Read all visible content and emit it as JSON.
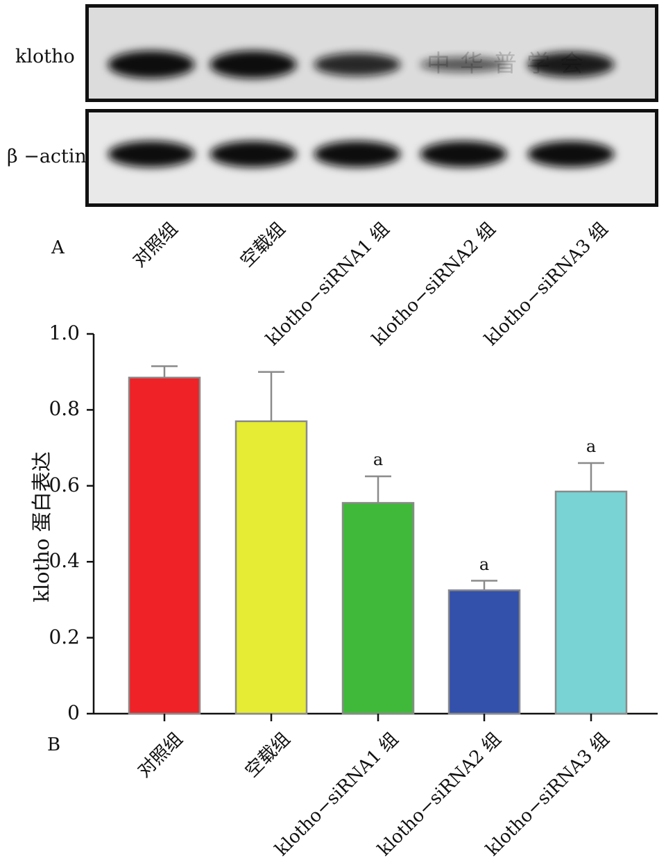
{
  "panel_a": {
    "letter": "A",
    "rows": [
      {
        "label": "klotho",
        "band_intensity": [
          1.0,
          1.0,
          0.8,
          0.45,
          0.9
        ]
      },
      {
        "label": "β −actin",
        "band_intensity": [
          1.0,
          1.0,
          1.0,
          1.0,
          1.0
        ]
      }
    ],
    "watermark": "中华普学会",
    "lane_labels": [
      "对照组",
      "空载组",
      "klotho−siRNA1 组",
      "klotho−siRNA2 组",
      "klotho−siRNA3 组"
    ]
  },
  "panel_b": {
    "letter": "B"
  },
  "chart_data": {
    "type": "bar",
    "categories": [
      "对照组",
      "空载组",
      "klotho−siRNA1 组",
      "klotho−siRNA2 组",
      "klotho−siRNA3 组"
    ],
    "values": [
      0.885,
      0.77,
      0.555,
      0.325,
      0.585
    ],
    "error_upper": [
      0.915,
      0.9,
      0.625,
      0.35,
      0.66
    ],
    "significance": [
      "",
      "",
      "a",
      "a",
      "a"
    ],
    "colors": [
      "#ee2227",
      "#e5ec33",
      "#40b93a",
      "#3350ab",
      "#79d2d3"
    ],
    "title": "",
    "xlabel": "",
    "ylabel": "klotho 蛋白表达",
    "ylim": [
      0,
      1.0
    ],
    "yticks": [
      "0",
      "0.2",
      "0.4",
      "0.6",
      "0.8",
      "1.0"
    ],
    "grid": false
  }
}
